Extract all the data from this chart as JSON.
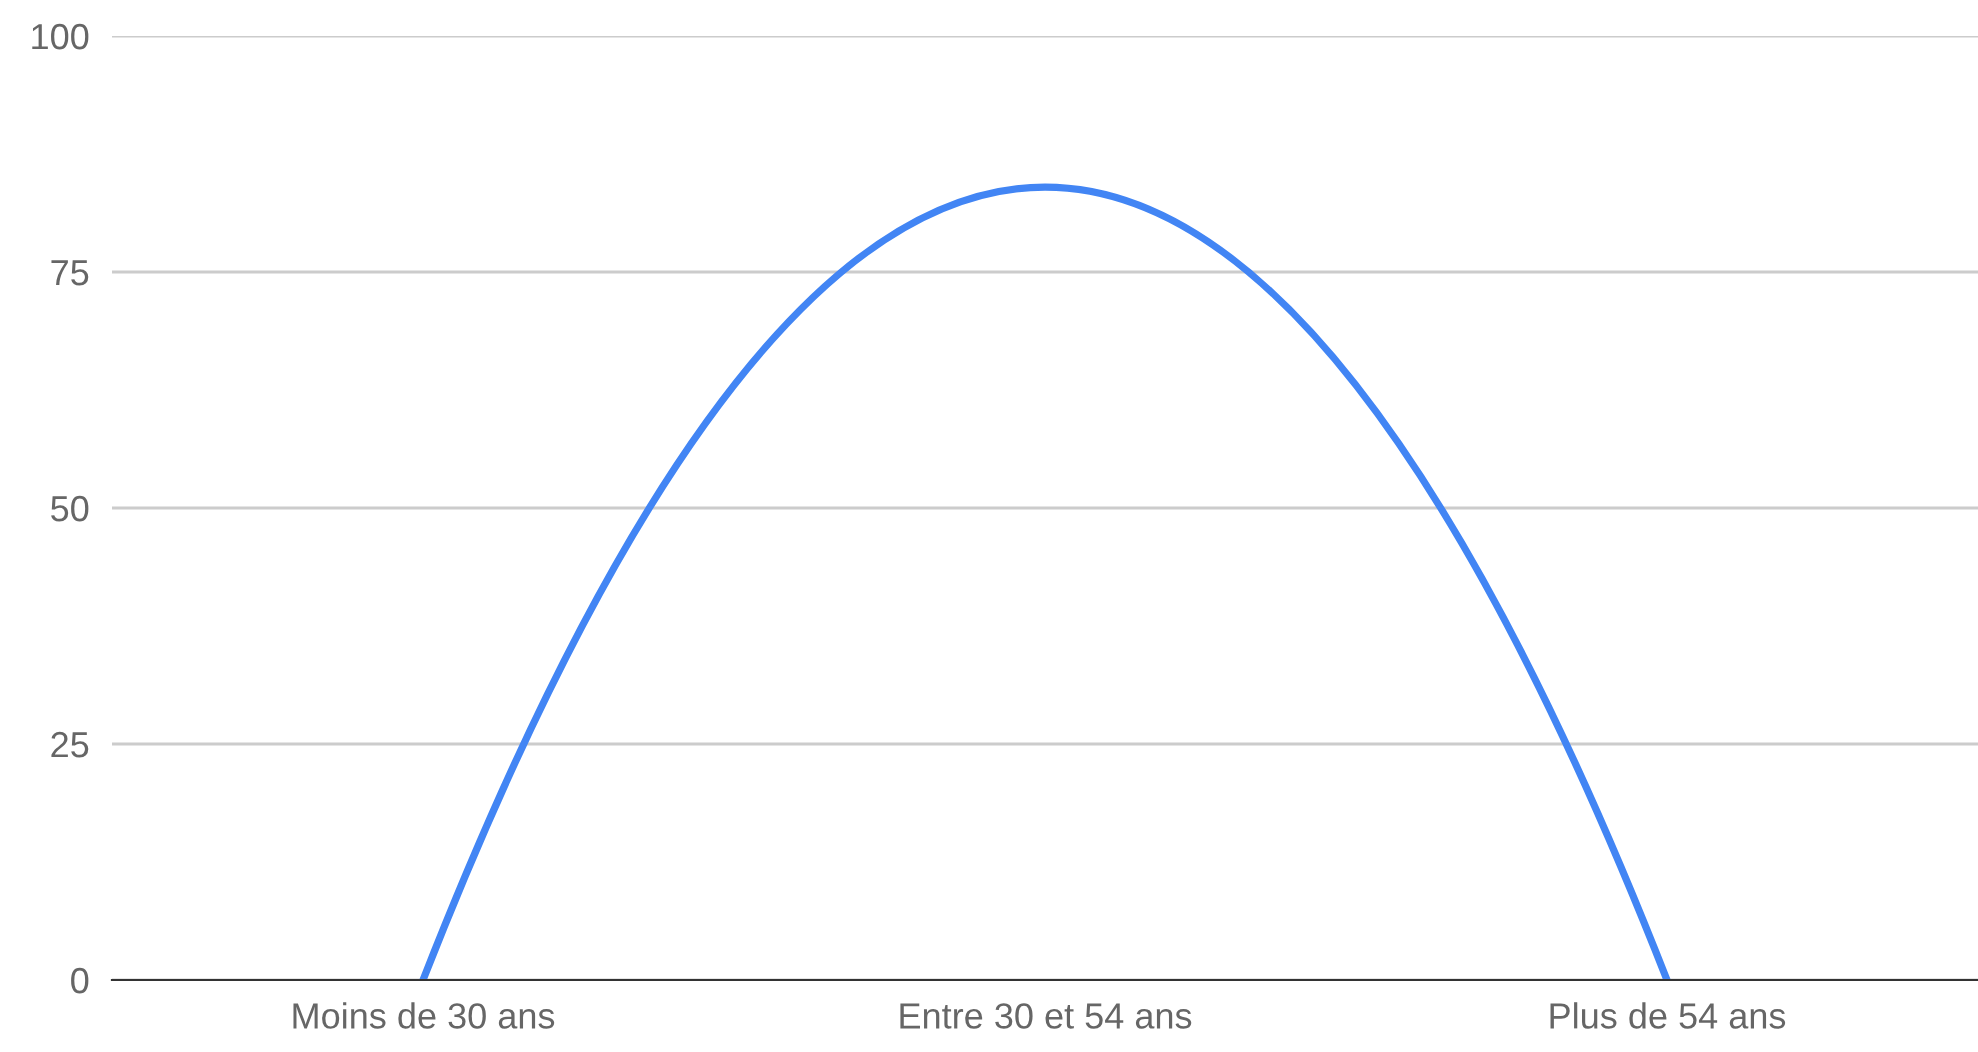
{
  "chart_data": {
    "type": "line",
    "categories": [
      "Moins de 30 ans",
      "Entre 30 et 54 ans",
      "Plus de 54 ans"
    ],
    "series": [
      {
        "color": "#4285f4",
        "values": [
          0,
          84,
          0
        ]
      }
    ],
    "ylim": [
      0,
      100
    ],
    "yticks": [
      0,
      25,
      50,
      75,
      100
    ],
    "grid": "y",
    "legend": false,
    "marker": "none",
    "line_style": "solid"
  }
}
